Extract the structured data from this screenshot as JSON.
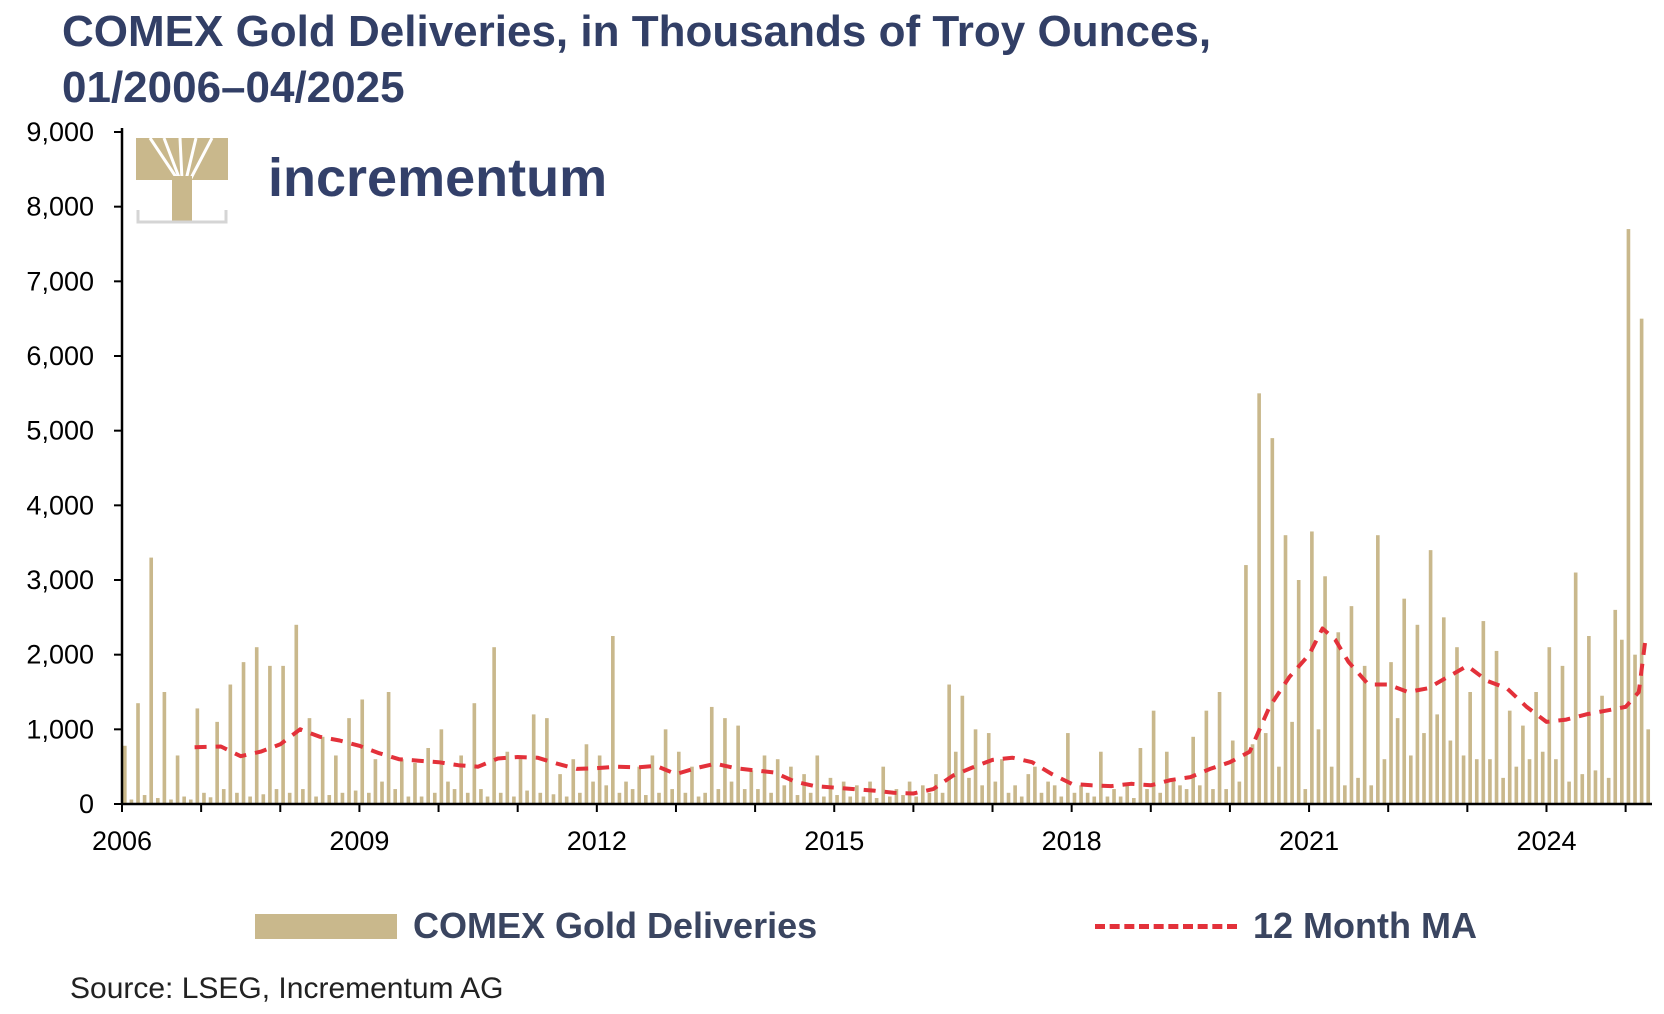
{
  "page": {
    "title_line1": "COMEX Gold Deliveries, in Thousands of Troy Ounces,",
    "title_line2": "01/2006–04/2025",
    "source": "Source: LSEG, Incrementum AG",
    "logo_text": "incrementum"
  },
  "colors": {
    "bars": "#c9b88c",
    "ma_line": "#e3313a",
    "title": "#323f66",
    "logo": "#33406a"
  },
  "chart_data": {
    "type": "bar",
    "x_start": "2006-01",
    "x_end": "2025-04",
    "xticks": [
      "2006",
      "2009",
      "2012",
      "2015",
      "2018",
      "2021",
      "2024"
    ],
    "yticks": [
      "0",
      "1,000",
      "2,000",
      "3,000",
      "4,000",
      "5,000",
      "6,000",
      "7,000",
      "8,000",
      "9,000"
    ],
    "ylim": [
      0,
      9000
    ],
    "grid": false,
    "legend_position": "bottom",
    "series": [
      {
        "name": "COMEX Gold Deliveries",
        "type": "bar",
        "values": [
          780,
          60,
          1350,
          120,
          3300,
          80,
          1500,
          60,
          650,
          100,
          60,
          1280,
          150,
          90,
          1100,
          200,
          1600,
          150,
          1900,
          100,
          2100,
          130,
          1850,
          200,
          1850,
          150,
          2400,
          200,
          1150,
          100,
          900,
          120,
          650,
          150,
          1150,
          180,
          1400,
          150,
          600,
          300,
          1500,
          200,
          600,
          100,
          550,
          100,
          750,
          150,
          1000,
          300,
          200,
          650,
          150,
          1350,
          200,
          100,
          2100,
          150,
          700,
          100,
          650,
          180,
          1200,
          150,
          1150,
          130,
          400,
          100,
          600,
          150,
          800,
          300,
          650,
          250,
          2250,
          150,
          300,
          200,
          500,
          120,
          650,
          150,
          1000,
          200,
          700,
          150,
          500,
          100,
          150,
          1300,
          200,
          1150,
          300,
          1050,
          200,
          450,
          200,
          650,
          150,
          600,
          250,
          500,
          120,
          400,
          150,
          650,
          100,
          350,
          120,
          300,
          100,
          250,
          100,
          300,
          80,
          500,
          100,
          200,
          120,
          300,
          100,
          250,
          150,
          400,
          150,
          1600,
          700,
          1450,
          350,
          1000,
          250,
          950,
          300,
          600,
          150,
          250,
          100,
          400,
          500,
          150,
          300,
          250,
          100,
          950,
          150,
          250,
          150,
          100,
          700,
          100,
          200,
          100,
          250,
          80,
          750,
          200,
          1250,
          150,
          700,
          300,
          250,
          200,
          900,
          250,
          1250,
          200,
          1500,
          200,
          850,
          300,
          3200,
          800,
          5500,
          950,
          4900,
          500,
          3600,
          1100,
          3000,
          200,
          3650,
          1000,
          3050,
          500,
          2300,
          250,
          2650,
          350,
          1850,
          250,
          3600,
          600,
          1900,
          1150,
          2750,
          650,
          2400,
          950,
          3400,
          1200,
          2500,
          850,
          2100,
          650,
          1500,
          600,
          2450,
          600,
          2050,
          350,
          1250,
          500,
          1050,
          600,
          1500,
          700,
          2100,
          600,
          1850,
          300,
          3100,
          400,
          2250,
          450,
          1450,
          350,
          2600,
          2200,
          7700,
          2000,
          6500,
          1000
        ]
      },
      {
        "name": "12 Month MA",
        "type": "line",
        "style": "dashed",
        "points": [
          [
            2006.917,
            760
          ],
          [
            2007.25,
            770
          ],
          [
            2007.5,
            640
          ],
          [
            2007.75,
            700
          ],
          [
            2008.0,
            800
          ],
          [
            2008.25,
            1000
          ],
          [
            2008.5,
            900
          ],
          [
            2008.75,
            850
          ],
          [
            2009.0,
            780
          ],
          [
            2009.25,
            680
          ],
          [
            2009.5,
            600
          ],
          [
            2009.75,
            580
          ],
          [
            2010.0,
            560
          ],
          [
            2010.25,
            520
          ],
          [
            2010.5,
            500
          ],
          [
            2010.75,
            610
          ],
          [
            2011.0,
            630
          ],
          [
            2011.25,
            620
          ],
          [
            2011.5,
            540
          ],
          [
            2011.75,
            470
          ],
          [
            2012.0,
            480
          ],
          [
            2012.25,
            500
          ],
          [
            2012.5,
            490
          ],
          [
            2012.75,
            510
          ],
          [
            2013.0,
            400
          ],
          [
            2013.25,
            480
          ],
          [
            2013.5,
            540
          ],
          [
            2013.75,
            480
          ],
          [
            2014.0,
            450
          ],
          [
            2014.25,
            420
          ],
          [
            2014.5,
            300
          ],
          [
            2014.75,
            240
          ],
          [
            2015.0,
            220
          ],
          [
            2015.25,
            200
          ],
          [
            2015.5,
            180
          ],
          [
            2015.75,
            150
          ],
          [
            2016.0,
            140
          ],
          [
            2016.25,
            200
          ],
          [
            2016.5,
            380
          ],
          [
            2016.75,
            490
          ],
          [
            2017.0,
            590
          ],
          [
            2017.25,
            620
          ],
          [
            2017.5,
            560
          ],
          [
            2017.75,
            400
          ],
          [
            2018.0,
            270
          ],
          [
            2018.25,
            250
          ],
          [
            2018.5,
            240
          ],
          [
            2018.75,
            270
          ],
          [
            2019.0,
            250
          ],
          [
            2019.25,
            320
          ],
          [
            2019.5,
            360
          ],
          [
            2019.75,
            470
          ],
          [
            2020.0,
            560
          ],
          [
            2020.25,
            700
          ],
          [
            2020.5,
            1300
          ],
          [
            2020.75,
            1700
          ],
          [
            2021.0,
            2000
          ],
          [
            2021.17,
            2350
          ],
          [
            2021.33,
            2200
          ],
          [
            2021.5,
            1900
          ],
          [
            2021.75,
            1600
          ],
          [
            2022.0,
            1600
          ],
          [
            2022.25,
            1500
          ],
          [
            2022.5,
            1550
          ],
          [
            2022.75,
            1700
          ],
          [
            2023.0,
            1850
          ],
          [
            2023.25,
            1650
          ],
          [
            2023.5,
            1550
          ],
          [
            2023.75,
            1300
          ],
          [
            2024.0,
            1100
          ],
          [
            2024.25,
            1130
          ],
          [
            2024.5,
            1200
          ],
          [
            2024.75,
            1250
          ],
          [
            2025.0,
            1300
          ],
          [
            2025.167,
            1500
          ],
          [
            2025.25,
            2200
          ]
        ]
      }
    ]
  }
}
